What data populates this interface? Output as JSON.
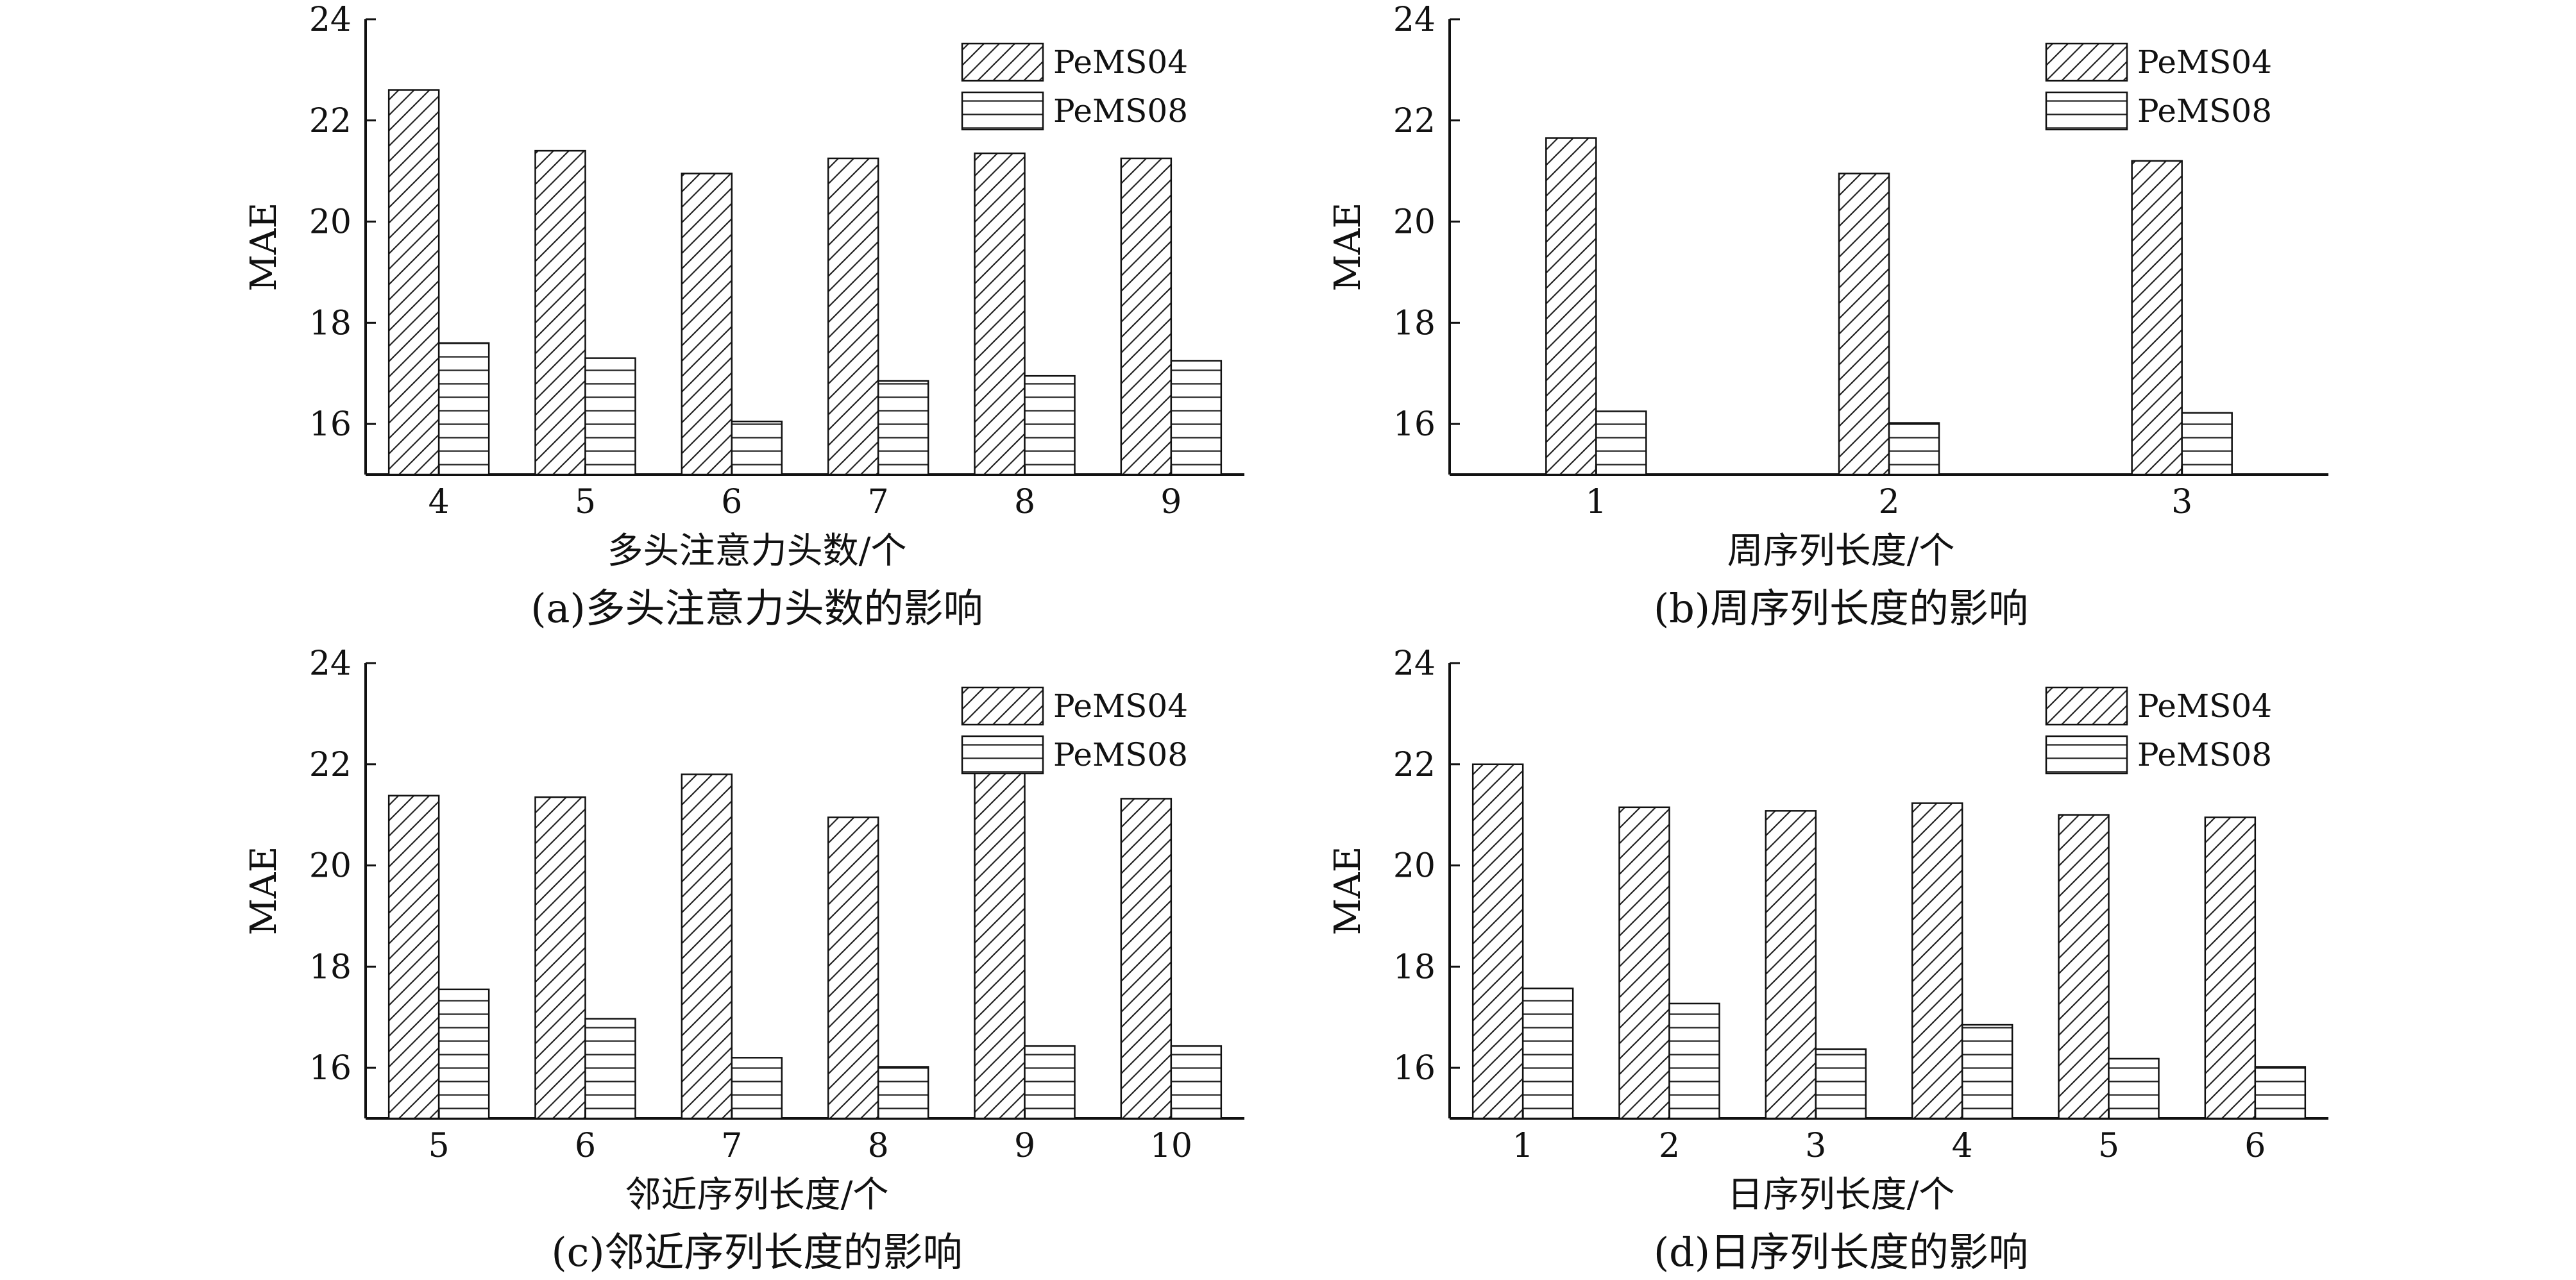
{
  "chart_data": [
    {
      "type": "bar",
      "panel": "a",
      "categories": [
        "4",
        "5",
        "6",
        "7",
        "8",
        "9"
      ],
      "series": [
        {
          "name": "PeMS04",
          "values": [
            22.6,
            21.4,
            20.95,
            21.25,
            21.35,
            21.25
          ],
          "pattern": "diagonal"
        },
        {
          "name": "PeMS08",
          "values": [
            17.6,
            17.3,
            16.05,
            16.85,
            16.95,
            17.25
          ],
          "pattern": "horizontal"
        }
      ],
      "xlabel": "多头注意力头数/个",
      "ylabel": "MAE",
      "caption": "(a)多头注意力头数的影响",
      "ylim": [
        15,
        24
      ],
      "yticks": [
        16,
        18,
        20,
        22,
        24
      ],
      "grid": false,
      "legend_position": "top-right"
    },
    {
      "type": "bar",
      "panel": "b",
      "categories": [
        "1",
        "2",
        "3"
      ],
      "series": [
        {
          "name": "PeMS04",
          "values": [
            21.65,
            20.95,
            21.2
          ],
          "pattern": "diagonal"
        },
        {
          "name": "PeMS08",
          "values": [
            16.25,
            16.02,
            16.22
          ],
          "pattern": "horizontal"
        }
      ],
      "xlabel": "周序列长度/个",
      "ylabel": "MAE",
      "caption": "(b)周序列长度的影响",
      "ylim": [
        15,
        24
      ],
      "yticks": [
        16,
        18,
        20,
        22,
        24
      ],
      "grid": false,
      "legend_position": "top-right"
    },
    {
      "type": "bar",
      "panel": "c",
      "categories": [
        "5",
        "6",
        "7",
        "8",
        "9",
        "10"
      ],
      "series": [
        {
          "name": "PeMS04",
          "values": [
            21.38,
            21.35,
            21.8,
            20.95,
            22.15,
            21.32
          ],
          "pattern": "diagonal"
        },
        {
          "name": "PeMS08",
          "values": [
            17.55,
            16.97,
            16.2,
            16.02,
            16.43,
            16.43
          ],
          "pattern": "horizontal"
        }
      ],
      "xlabel": "邻近序列长度/个",
      "ylabel": "MAE",
      "caption": "(c)邻近序列长度的影响",
      "ylim": [
        15,
        24
      ],
      "yticks": [
        16,
        18,
        20,
        22,
        24
      ],
      "grid": false,
      "legend_position": "top-right"
    },
    {
      "type": "bar",
      "panel": "d",
      "categories": [
        "1",
        "2",
        "3",
        "4",
        "5",
        "6"
      ],
      "series": [
        {
          "name": "PeMS04",
          "values": [
            22.0,
            21.15,
            21.08,
            21.23,
            21.0,
            20.95
          ],
          "pattern": "diagonal"
        },
        {
          "name": "PeMS08",
          "values": [
            17.57,
            17.27,
            16.37,
            16.85,
            16.18,
            16.02
          ],
          "pattern": "horizontal"
        }
      ],
      "xlabel": "日序列长度/个",
      "ylabel": "MAE",
      "caption": "(d)日序列长度的影响",
      "ylim": [
        15,
        24
      ],
      "yticks": [
        16,
        18,
        20,
        22,
        24
      ],
      "grid": false,
      "legend_position": "top-right"
    }
  ]
}
